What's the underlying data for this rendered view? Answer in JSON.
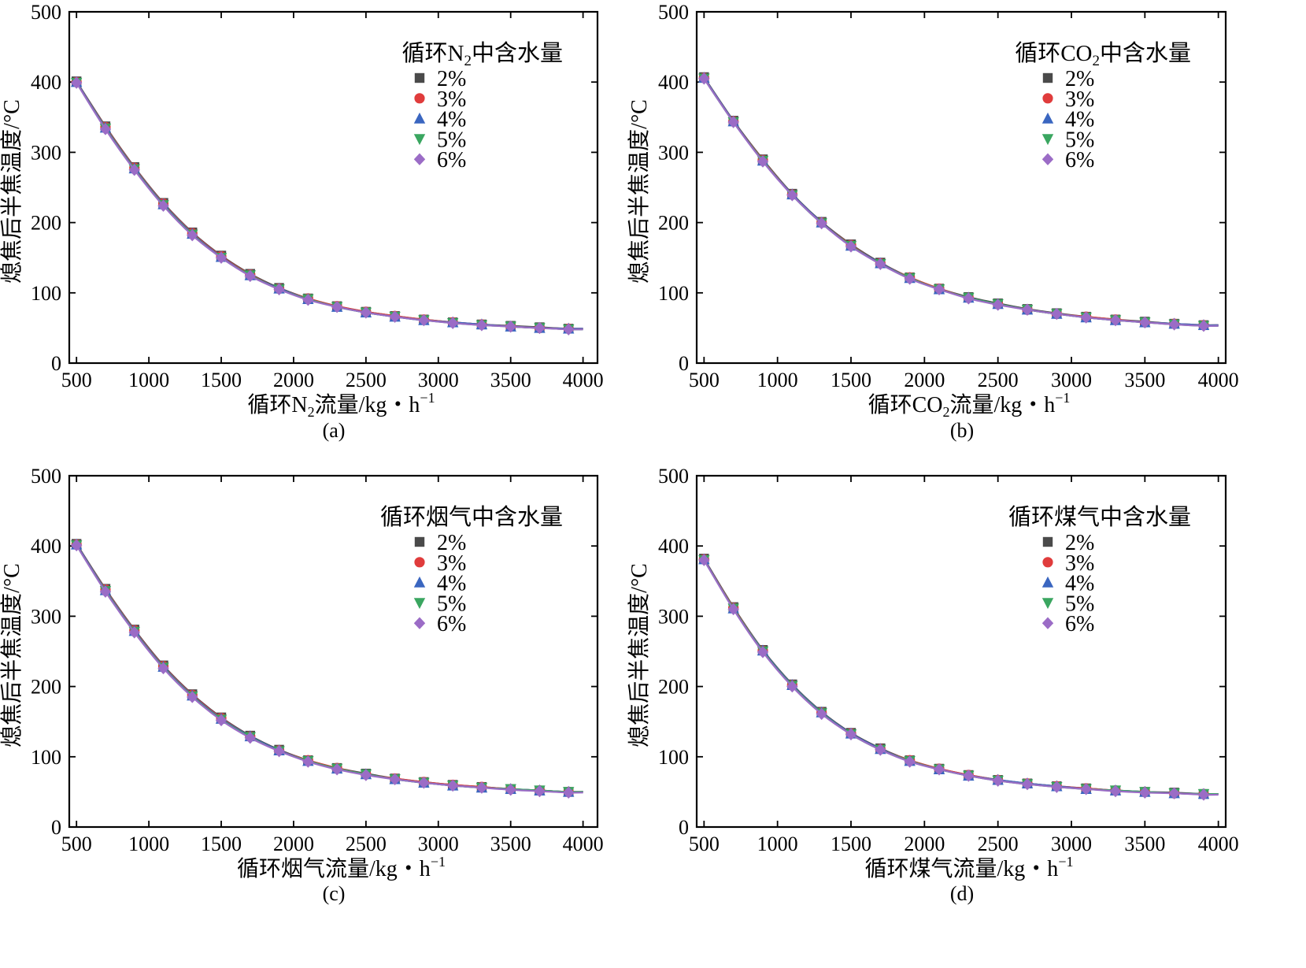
{
  "y_axis_label": "熄焦后半焦温度/°C",
  "series_names": [
    "2%",
    "3%",
    "4%",
    "5%",
    "6%"
  ],
  "colors": {
    "2%": "#4a4a4a",
    "3%": "#e03c3c",
    "4%": "#3a66c0",
    "5%": "#3aa660",
    "6%": "#9b6cc6"
  },
  "markers": {
    "2%": "square",
    "3%": "circle",
    "4%": "triangle-up",
    "5%": "triangle-down",
    "6%": "diamond"
  },
  "chart_data": [
    {
      "type": "line",
      "panel": "a",
      "caption": "(a)",
      "legend_title": {
        "prefix": "循环N",
        "sub": "2",
        "suffix": "中含水量"
      },
      "xlabel": {
        "prefix": "循环N",
        "sub": "2",
        "suffix": "流量/kg・h",
        "sup": "−1"
      },
      "ylabel": "熄焦后半焦温度/°C",
      "xlim": [
        450,
        4100
      ],
      "ylim": [
        0,
        500
      ],
      "xticks": [
        500,
        1000,
        1500,
        2000,
        2500,
        3000,
        3500,
        4000
      ],
      "yticks": [
        0,
        100,
        200,
        300,
        400,
        500
      ],
      "legend_position": "top-right",
      "curve_end": [
        4000,
        48
      ],
      "x": [
        500,
        700,
        900,
        1100,
        1300,
        1500,
        1700,
        1900,
        2100,
        2300,
        2500,
        2700,
        2900,
        3100,
        3300,
        3500,
        3700,
        3900
      ],
      "series": [
        {
          "name": "2%",
          "values": [
            401,
            337,
            279,
            228,
            186,
            153,
            127,
            107,
            92,
            81,
            73,
            67,
            62,
            58,
            55,
            53,
            51,
            49
          ]
        },
        {
          "name": "3%",
          "values": [
            400,
            336,
            278,
            227,
            185,
            152,
            126,
            106,
            92,
            81,
            73,
            67,
            62,
            58,
            55,
            52,
            50,
            49
          ]
        },
        {
          "name": "4%",
          "values": [
            400,
            335,
            277,
            226,
            184,
            151,
            125,
            106,
            91,
            80,
            72,
            66,
            61,
            58,
            55,
            52,
            50,
            49
          ]
        },
        {
          "name": "5%",
          "values": [
            399,
            334,
            276,
            225,
            183,
            150,
            125,
            105,
            91,
            80,
            72,
            66,
            61,
            57,
            54,
            52,
            50,
            48
          ]
        },
        {
          "name": "6%",
          "values": [
            399,
            333,
            275,
            224,
            182,
            150,
            124,
            105,
            90,
            80,
            72,
            66,
            61,
            57,
            54,
            52,
            50,
            48
          ]
        }
      ]
    },
    {
      "type": "line",
      "panel": "b",
      "caption": "(b)",
      "legend_title": {
        "prefix": "循环CO",
        "sub": "2",
        "suffix": "中含水量"
      },
      "xlabel": {
        "prefix": "循环CO",
        "sub": "2",
        "suffix": "流量/kg・h",
        "sup": "−1"
      },
      "ylabel": "熄焦后半焦温度/°C",
      "xlim": [
        450,
        4050
      ],
      "ylim": [
        0,
        500
      ],
      "xticks": [
        500,
        1000,
        1500,
        2000,
        2500,
        3000,
        3500,
        4000
      ],
      "yticks": [
        0,
        100,
        200,
        300,
        400,
        500
      ],
      "legend_position": "top-right",
      "curve_end": [
        4000,
        53
      ],
      "x": [
        500,
        700,
        900,
        1100,
        1300,
        1500,
        1700,
        1900,
        2100,
        2300,
        2500,
        2700,
        2900,
        3100,
        3300,
        3500,
        3700,
        3900
      ],
      "series": [
        {
          "name": "2%",
          "values": [
            407,
            345,
            290,
            241,
            201,
            169,
            143,
            122,
            106,
            94,
            85,
            77,
            71,
            66,
            62,
            59,
            56,
            54
          ]
        },
        {
          "name": "3%",
          "values": [
            406,
            344,
            289,
            240,
            200,
            168,
            142,
            122,
            106,
            93,
            84,
            76,
            70,
            66,
            62,
            58,
            56,
            54
          ]
        },
        {
          "name": "4%",
          "values": [
            406,
            344,
            288,
            240,
            200,
            167,
            142,
            121,
            105,
            93,
            84,
            76,
            70,
            65,
            61,
            58,
            56,
            54
          ]
        },
        {
          "name": "5%",
          "values": [
            405,
            343,
            288,
            239,
            199,
            167,
            141,
            121,
            105,
            93,
            84,
            76,
            70,
            65,
            61,
            58,
            55,
            53
          ]
        },
        {
          "name": "6%",
          "values": [
            405,
            343,
            287,
            239,
            199,
            166,
            141,
            120,
            105,
            92,
            83,
            76,
            70,
            65,
            61,
            58,
            55,
            53
          ]
        }
      ]
    },
    {
      "type": "line",
      "panel": "c",
      "caption": "(c)",
      "legend_title": {
        "prefix": "循环烟气中含水量",
        "sub": "",
        "suffix": ""
      },
      "xlabel": {
        "prefix": "循环烟气流量/kg・h",
        "sub": "",
        "suffix": "",
        "sup": "−1"
      },
      "ylabel": "熄焦后半焦温度/°C",
      "xlim": [
        450,
        4100
      ],
      "ylim": [
        0,
        500
      ],
      "xticks": [
        500,
        1000,
        1500,
        2000,
        2500,
        3000,
        3500,
        4000
      ],
      "yticks": [
        0,
        100,
        200,
        300,
        400,
        500
      ],
      "legend_position": "top-right",
      "curve_end": [
        4000,
        49
      ],
      "x": [
        500,
        700,
        900,
        1100,
        1300,
        1500,
        1700,
        1900,
        2100,
        2300,
        2500,
        2700,
        2900,
        3100,
        3300,
        3500,
        3700,
        3900
      ],
      "series": [
        {
          "name": "2%",
          "values": [
            403,
            339,
            281,
            230,
            189,
            156,
            130,
            110,
            95,
            84,
            76,
            69,
            64,
            60,
            57,
            54,
            52,
            50
          ]
        },
        {
          "name": "3%",
          "values": [
            402,
            338,
            280,
            229,
            188,
            155,
            129,
            109,
            95,
            84,
            75,
            69,
            64,
            60,
            57,
            54,
            52,
            50
          ]
        },
        {
          "name": "4%",
          "values": [
            402,
            337,
            279,
            228,
            187,
            154,
            129,
            109,
            94,
            83,
            75,
            68,
            63,
            59,
            56,
            54,
            52,
            50
          ]
        },
        {
          "name": "5%",
          "values": [
            401,
            336,
            278,
            227,
            186,
            153,
            128,
            108,
            94,
            83,
            75,
            68,
            63,
            59,
            56,
            54,
            52,
            50
          ]
        },
        {
          "name": "6%",
          "values": [
            401,
            335,
            277,
            226,
            185,
            152,
            127,
            108,
            93,
            82,
            74,
            68,
            63,
            59,
            56,
            53,
            51,
            49
          ]
        }
      ]
    },
    {
      "type": "line",
      "panel": "d",
      "caption": "(d)",
      "legend_title": {
        "prefix": "循环煤气中含水量",
        "sub": "",
        "suffix": ""
      },
      "xlabel": {
        "prefix": "循环煤气流量/kg・h",
        "sub": "",
        "suffix": "",
        "sup": "−1"
      },
      "ylabel": "熄焦后半焦温度/°C",
      "xlim": [
        450,
        4050
      ],
      "ylim": [
        0,
        500
      ],
      "xticks": [
        500,
        1000,
        1500,
        2000,
        2500,
        3000,
        3500,
        4000
      ],
      "yticks": [
        0,
        100,
        200,
        300,
        400,
        500
      ],
      "legend_position": "top-right",
      "curve_end": [
        4000,
        46
      ],
      "x": [
        500,
        700,
        900,
        1100,
        1300,
        1500,
        1700,
        1900,
        2100,
        2300,
        2500,
        2700,
        2900,
        3100,
        3300,
        3500,
        3700,
        3900
      ],
      "series": [
        {
          "name": "2%",
          "values": [
            382,
            313,
            252,
            203,
            164,
            134,
            112,
            95,
            83,
            74,
            67,
            62,
            58,
            55,
            52,
            50,
            49,
            47
          ]
        },
        {
          "name": "3%",
          "values": [
            381,
            312,
            251,
            202,
            163,
            133,
            111,
            95,
            83,
            74,
            67,
            62,
            58,
            55,
            52,
            50,
            48,
            47
          ]
        },
        {
          "name": "4%",
          "values": [
            381,
            311,
            251,
            202,
            163,
            133,
            111,
            94,
            82,
            73,
            67,
            62,
            58,
            54,
            52,
            50,
            48,
            47
          ]
        },
        {
          "name": "5%",
          "values": [
            380,
            311,
            250,
            201,
            162,
            132,
            110,
            94,
            82,
            73,
            66,
            61,
            57,
            54,
            52,
            50,
            48,
            47
          ]
        },
        {
          "name": "6%",
          "values": [
            380,
            310,
            249,
            200,
            161,
            132,
            110,
            93,
            82,
            73,
            66,
            61,
            57,
            54,
            51,
            49,
            48,
            46
          ]
        }
      ]
    }
  ]
}
